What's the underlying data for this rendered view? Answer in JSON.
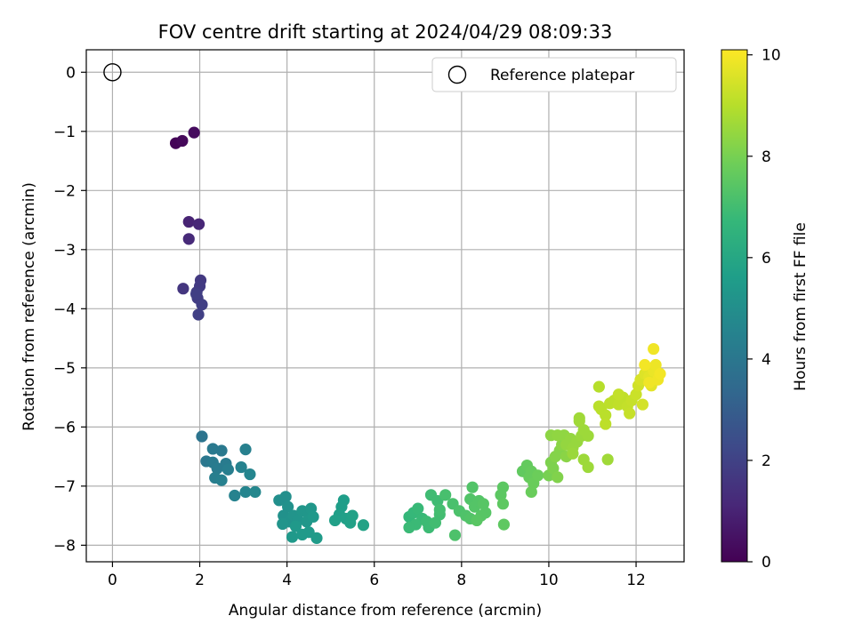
{
  "chart_data": {
    "type": "scatter",
    "title": "FOV centre drift starting at 2024/04/29 08:09:33",
    "xlabel": "Angular distance from reference (arcmin)",
    "ylabel": "Rotation from reference (arcmin)",
    "xlim": [
      -0.6,
      13.1
    ],
    "ylim": [
      -8.28,
      0.38
    ],
    "xticks": [
      0,
      2,
      4,
      6,
      8,
      10,
      12
    ],
    "yticks": [
      0,
      -1,
      -2,
      -3,
      -4,
      -5,
      -6,
      -7,
      -8
    ],
    "grid": true,
    "legend": {
      "position": "top-right",
      "entries": [
        "Reference platepar"
      ]
    },
    "reference_point": {
      "x": 0,
      "y": 0
    },
    "colorbar": {
      "label": "Hours from first FF file",
      "min": 0,
      "max": 10.1,
      "ticks": [
        0,
        2,
        4,
        6,
        8,
        10
      ],
      "colormap": [
        "#440154",
        "#482878",
        "#3e4989",
        "#31688e",
        "#26828e",
        "#1f9e89",
        "#35b779",
        "#6ece58",
        "#b5de2b",
        "#fde725"
      ]
    },
    "points": [
      [
        1.45,
        -1.2,
        0.1
      ],
      [
        1.6,
        -1.16,
        0.2
      ],
      [
        1.87,
        -1.02,
        0.3
      ],
      [
        1.75,
        -2.53,
        1.0
      ],
      [
        1.98,
        -2.57,
        1.1
      ],
      [
        1.75,
        -2.82,
        1.2
      ],
      [
        1.62,
        -3.66,
        1.6
      ],
      [
        2.02,
        -3.52,
        1.7
      ],
      [
        2.0,
        -3.62,
        1.75
      ],
      [
        1.93,
        -3.72,
        1.8
      ],
      [
        1.95,
        -3.82,
        1.85
      ],
      [
        2.05,
        -3.93,
        1.9
      ],
      [
        1.97,
        -4.1,
        1.95
      ],
      [
        1.92,
        -3.75,
        1.9
      ],
      [
        2.05,
        -6.16,
        3.9
      ],
      [
        2.15,
        -6.58,
        4.0
      ],
      [
        2.3,
        -6.37,
        4.1
      ],
      [
        2.5,
        -6.4,
        4.1
      ],
      [
        2.3,
        -6.6,
        4.15
      ],
      [
        2.4,
        -6.7,
        4.2
      ],
      [
        2.6,
        -6.62,
        4.2
      ],
      [
        2.65,
        -6.72,
        4.3
      ],
      [
        2.35,
        -6.86,
        4.3
      ],
      [
        2.5,
        -6.9,
        4.4
      ],
      [
        2.8,
        -7.16,
        4.5
      ],
      [
        2.95,
        -6.68,
        4.5
      ],
      [
        3.05,
        -6.38,
        4.4
      ],
      [
        3.05,
        -7.1,
        4.6
      ],
      [
        3.15,
        -6.8,
        4.6
      ],
      [
        3.27,
        -7.1,
        4.7
      ],
      [
        3.82,
        -7.24,
        5.0
      ],
      [
        3.97,
        -7.18,
        5.0
      ],
      [
        4.02,
        -7.35,
        5.1
      ],
      [
        3.92,
        -7.5,
        5.1
      ],
      [
        4.05,
        -7.6,
        5.15
      ],
      [
        3.9,
        -7.64,
        5.2
      ],
      [
        4.15,
        -7.5,
        5.2
      ],
      [
        4.25,
        -7.58,
        5.25
      ],
      [
        4.35,
        -7.42,
        5.3
      ],
      [
        4.5,
        -7.45,
        5.3
      ],
      [
        4.55,
        -7.38,
        5.35
      ],
      [
        4.45,
        -7.6,
        5.35
      ],
      [
        4.6,
        -7.52,
        5.4
      ],
      [
        4.2,
        -7.68,
        5.4
      ],
      [
        4.12,
        -7.86,
        5.4
      ],
      [
        4.35,
        -7.82,
        5.45
      ],
      [
        4.5,
        -7.78,
        5.45
      ],
      [
        4.68,
        -7.88,
        5.5
      ],
      [
        5.3,
        -7.24,
        5.6
      ],
      [
        5.25,
        -7.35,
        5.6
      ],
      [
        5.2,
        -7.48,
        5.65
      ],
      [
        5.35,
        -7.55,
        5.7
      ],
      [
        5.1,
        -7.58,
        5.7
      ],
      [
        5.45,
        -7.62,
        5.75
      ],
      [
        5.5,
        -7.5,
        5.75
      ],
      [
        5.75,
        -7.66,
        5.8
      ],
      [
        6.8,
        -7.52,
        6.7
      ],
      [
        6.9,
        -7.45,
        6.75
      ],
      [
        7.0,
        -7.38,
        6.8
      ],
      [
        7.1,
        -7.55,
        6.8
      ],
      [
        6.95,
        -7.65,
        6.85
      ],
      [
        6.8,
        -7.7,
        6.85
      ],
      [
        7.2,
        -7.6,
        6.9
      ],
      [
        7.25,
        -7.7,
        6.9
      ],
      [
        7.3,
        -7.15,
        6.95
      ],
      [
        7.45,
        -7.25,
        6.95
      ],
      [
        7.5,
        -7.48,
        7.0
      ],
      [
        7.4,
        -7.62,
        7.0
      ],
      [
        7.5,
        -7.4,
        7.05
      ],
      [
        7.63,
        -7.15,
        7.1
      ],
      [
        7.8,
        -7.3,
        7.15
      ],
      [
        7.95,
        -7.42,
        7.2
      ],
      [
        7.85,
        -7.83,
        7.2
      ],
      [
        8.1,
        -7.5,
        7.25
      ],
      [
        8.2,
        -7.55,
        7.3
      ],
      [
        8.25,
        -7.02,
        7.3
      ],
      [
        8.2,
        -7.22,
        7.3
      ],
      [
        8.3,
        -7.35,
        7.35
      ],
      [
        8.4,
        -7.25,
        7.35
      ],
      [
        8.5,
        -7.3,
        7.4
      ],
      [
        8.55,
        -7.45,
        7.4
      ],
      [
        8.45,
        -7.5,
        7.4
      ],
      [
        8.35,
        -7.58,
        7.45
      ],
      [
        8.9,
        -7.15,
        7.5
      ],
      [
        8.95,
        -7.02,
        7.5
      ],
      [
        8.95,
        -7.3,
        7.55
      ],
      [
        8.97,
        -7.65,
        7.55
      ],
      [
        9.4,
        -6.75,
        7.6
      ],
      [
        9.5,
        -6.65,
        7.65
      ],
      [
        9.6,
        -6.75,
        7.7
      ],
      [
        9.55,
        -6.85,
        7.7
      ],
      [
        9.65,
        -6.95,
        7.75
      ],
      [
        9.6,
        -7.1,
        7.75
      ],
      [
        9.75,
        -6.82,
        7.8
      ],
      [
        10.0,
        -6.82,
        8.0
      ],
      [
        10.1,
        -6.7,
        8.1
      ],
      [
        10.2,
        -6.85,
        8.15
      ],
      [
        10.05,
        -6.6,
        8.1
      ],
      [
        10.15,
        -6.5,
        8.2
      ],
      [
        10.25,
        -6.4,
        8.2
      ],
      [
        10.4,
        -6.5,
        8.3
      ],
      [
        10.3,
        -6.3,
        8.3
      ],
      [
        10.05,
        -6.14,
        8.35
      ],
      [
        10.2,
        -6.14,
        8.4
      ],
      [
        10.35,
        -6.14,
        8.4
      ],
      [
        10.5,
        -6.2,
        8.45
      ],
      [
        10.4,
        -6.3,
        8.45
      ],
      [
        10.55,
        -6.35,
        8.5
      ],
      [
        10.65,
        -6.25,
        8.5
      ],
      [
        10.75,
        -6.15,
        8.55
      ],
      [
        10.8,
        -6.05,
        8.6
      ],
      [
        10.9,
        -6.15,
        8.6
      ],
      [
        10.7,
        -5.9,
        8.65
      ],
      [
        10.7,
        -5.85,
        8.65
      ],
      [
        10.8,
        -6.55,
        8.6
      ],
      [
        10.9,
        -6.68,
        8.6
      ],
      [
        11.35,
        -6.55,
        8.65
      ],
      [
        10.55,
        -6.45,
        8.55
      ],
      [
        11.15,
        -5.32,
        9.0
      ],
      [
        11.2,
        -5.7,
        9.05
      ],
      [
        11.3,
        -5.8,
        9.05
      ],
      [
        11.3,
        -5.95,
        9.1
      ],
      [
        11.15,
        -5.65,
        9.05
      ],
      [
        11.4,
        -5.6,
        9.1
      ],
      [
        11.5,
        -5.55,
        9.1
      ],
      [
        11.6,
        -5.62,
        9.15
      ],
      [
        11.7,
        -5.5,
        9.15
      ],
      [
        11.6,
        -5.45,
        9.2
      ],
      [
        11.8,
        -5.65,
        9.2
      ],
      [
        11.85,
        -5.77,
        9.25
      ],
      [
        11.9,
        -5.55,
        9.25
      ],
      [
        12.0,
        -5.45,
        9.3
      ],
      [
        12.05,
        -5.3,
        9.4
      ],
      [
        12.1,
        -5.2,
        9.5
      ],
      [
        12.15,
        -5.62,
        9.45
      ],
      [
        12.2,
        -5.1,
        9.6
      ],
      [
        12.25,
        -5.0,
        9.65
      ],
      [
        12.3,
        -5.15,
        9.7
      ],
      [
        12.35,
        -5.3,
        9.7
      ],
      [
        12.4,
        -5.05,
        9.8
      ],
      [
        12.45,
        -4.95,
        9.85
      ],
      [
        12.4,
        -4.68,
        9.9
      ],
      [
        12.5,
        -5.2,
        9.9
      ],
      [
        12.55,
        -5.1,
        9.95
      ],
      [
        12.2,
        -4.95,
        9.95
      ],
      [
        12.3,
        -5.25,
        9.9
      ]
    ]
  }
}
